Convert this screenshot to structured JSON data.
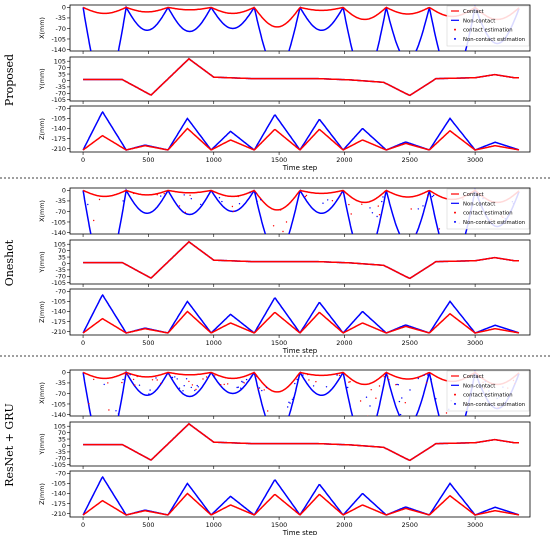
{
  "colors": {
    "contact": "#ff0000",
    "non_contact": "#0000ff",
    "contact_estimation": "#ff0000",
    "non_contact_estimation": "#0000ff",
    "separator": "#000000"
  },
  "xlabel": "Time step",
  "x_ticks": [
    0,
    500,
    1000,
    1500,
    2000,
    2500,
    3000
  ],
  "xlim": [
    -100,
    3420
  ],
  "axes": [
    {
      "ylabel": "X(mm)",
      "ylim": [
        -145,
        8
      ],
      "y_ticks": [
        0,
        -35,
        -70,
        -105,
        -140
      ],
      "y_tick_labels": [
        "0",
        "-35",
        "-70",
        "-105",
        "-140"
      ]
    },
    {
      "ylabel": "Y(mm)",
      "ylim": [
        -112,
        128
      ],
      "y_ticks": [
        105,
        70,
        35,
        0,
        -35,
        -70,
        -105
      ],
      "y_tick_labels": [
        "105",
        "70",
        "35",
        "0",
        "-35",
        "-70",
        "-105"
      ]
    },
    {
      "ylabel": "Z(mm)",
      "ylim": [
        -222,
        -62
      ],
      "y_ticks": [
        -70,
        -105,
        -140,
        -175,
        -210
      ],
      "y_tick_labels": [
        "-70",
        "-105",
        "-140",
        "-175",
        "-210"
      ]
    }
  ],
  "panels": [
    {
      "method": "Proposed",
      "legend": [
        "Contact",
        "Non-contact",
        "contact estimation",
        "Non-contact estimation"
      ],
      "noise": 0.0
    },
    {
      "method": "Oneshot",
      "legend": [
        "Contact",
        "Non-contact",
        "contact estimation",
        "Non-contact estimation"
      ],
      "noise": 0.25
    },
    {
      "method": "ResNet + GRU",
      "legend": [
        "Contact",
        "Non-contact",
        "contact estimation",
        "Non-contact estimation"
      ],
      "noise": 0.6
    }
  ],
  "chart_data": {
    "type": "line",
    "x_label": "Time step",
    "series": [
      {
        "name": "Contact",
        "color": "#ff0000"
      },
      {
        "name": "Non-contact",
        "color": "#0000ff"
      },
      {
        "name": "contact estimation",
        "color": "#ff0000",
        "marker": "dot"
      },
      {
        "name": "Non-contact estimation",
        "color": "#0000ff",
        "marker": "dot"
      }
    ],
    "strokes": [
      {
        "start": 0,
        "end": 330,
        "contact_end": 55,
        "x": {
          "blue_min": -135,
          "red_min": -20
        },
        "z": {
          "blue_peak": -82,
          "red_peak": -165
        }
      },
      {
        "start": 330,
        "end": 650,
        "contact_end": 45,
        "x": {
          "blue_min": -38,
          "red_min": -15
        },
        "z": {
          "blue_peak": -198,
          "red_peak": -200
        }
      },
      {
        "start": 650,
        "end": 980,
        "contact_end": 45,
        "x": {
          "blue_min": -40,
          "red_min": -8
        },
        "z": {
          "blue_peak": -105,
          "red_peak": -140
        }
      },
      {
        "start": 980,
        "end": 1310,
        "contact_end": 45,
        "x": {
          "blue_min": -35,
          "red_min": -20
        },
        "z": {
          "blue_peak": -150,
          "red_peak": -180
        }
      },
      {
        "start": 1310,
        "end": 1660,
        "contact_end": 60,
        "x": {
          "blue_min": -105,
          "red_min": -65
        },
        "z": {
          "blue_peak": -92,
          "red_peak": -143
        }
      },
      {
        "start": 1660,
        "end": 1990,
        "contact_end": 45,
        "x": {
          "blue_min": -38,
          "red_min": -10
        },
        "z": {
          "blue_peak": -108,
          "red_peak": -143
        }
      },
      {
        "start": 1990,
        "end": 2320,
        "contact_end": 45,
        "x": {
          "blue_min": -115,
          "red_min": -40
        },
        "z": {
          "blue_peak": -140,
          "red_peak": -180
        }
      },
      {
        "start": 2320,
        "end": 2650,
        "contact_end": 45,
        "x": {
          "blue_min": -88,
          "red_min": -22
        },
        "z": {
          "blue_peak": -187,
          "red_peak": -192
        }
      },
      {
        "start": 2650,
        "end": 3000,
        "contact_end": 55,
        "x": {
          "blue_min": -118,
          "red_min": -30
        },
        "z": {
          "blue_peak": -105,
          "red_peak": -148
        }
      },
      {
        "start": 3000,
        "end": 3340,
        "contact_end": 40,
        "x": {
          "blue_min": -60,
          "red_min": -40
        },
        "z": {
          "blue_peak": -188,
          "red_peak": -200
        }
      }
    ],
    "y_track": [
      [
        0,
        5
      ],
      [
        300,
        5
      ],
      [
        520,
        -80
      ],
      [
        810,
        118
      ],
      [
        1000,
        18
      ],
      [
        1300,
        10
      ],
      [
        1800,
        10
      ],
      [
        2050,
        3
      ],
      [
        2300,
        -10
      ],
      [
        2500,
        -82
      ],
      [
        2700,
        10
      ],
      [
        3000,
        15
      ],
      [
        3150,
        32
      ],
      [
        3300,
        15
      ]
    ],
    "z_base": -215
  }
}
